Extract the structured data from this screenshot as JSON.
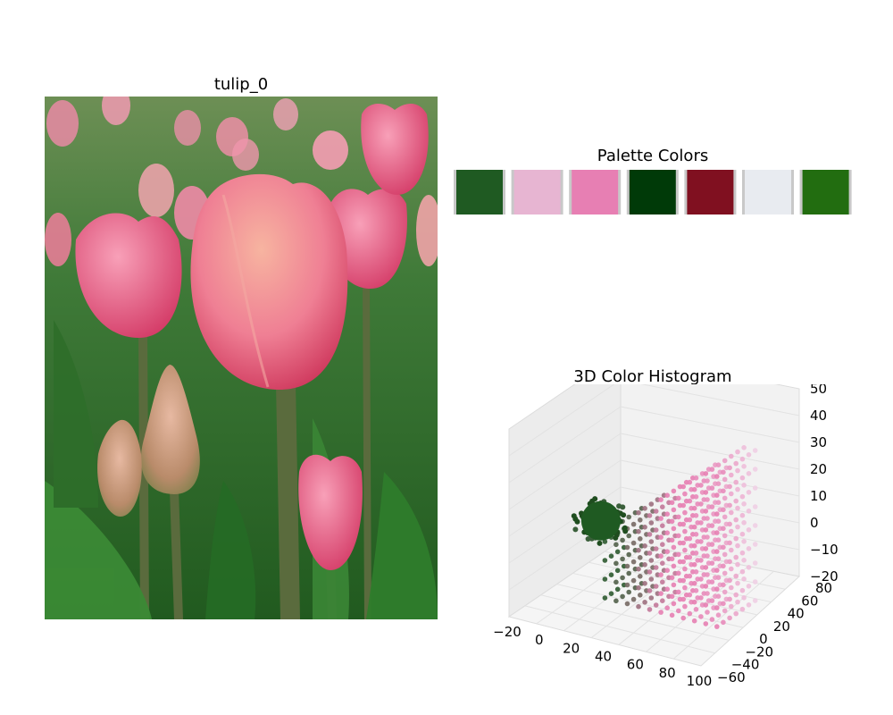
{
  "image_panel": {
    "title": "tulip_0"
  },
  "palette": {
    "title": "Palette Colors",
    "colors": [
      "#1f5a22",
      "#e7b5d2",
      "#e77fb3",
      "#003a08",
      "#801020",
      "#e8ebf0",
      "#226d10"
    ]
  },
  "chart_data": {
    "type": "scatter",
    "title": "3D Color Histogram",
    "projection": "3d",
    "grid": true,
    "xlabel": "",
    "ylabel": "",
    "zlabel": "",
    "x_ticks": [
      "−20",
      "0",
      "20",
      "40",
      "60",
      "80",
      "100"
    ],
    "y_ticks": [
      "−60",
      "−40",
      "−20",
      "0",
      "20",
      "40",
      "60",
      "80"
    ],
    "z_ticks": [
      "−20",
      "−10",
      "0",
      "10",
      "20",
      "30",
      "40",
      "50"
    ],
    "xlim": [
      -20,
      100
    ],
    "ylim": [
      -60,
      80
    ],
    "zlim": [
      -20,
      50
    ],
    "clusters": [
      {
        "name": "green cluster",
        "color": "#1f5a22",
        "x_range": [
          10,
          30
        ],
        "y_range": [
          -30,
          -5
        ],
        "z_range": [
          0,
          25
        ]
      },
      {
        "name": "pink cluster",
        "color": "#e77fb3",
        "x_range": [
          40,
          90
        ],
        "y_range": [
          -20,
          30
        ],
        "z_range": [
          -15,
          45
        ]
      }
    ]
  }
}
